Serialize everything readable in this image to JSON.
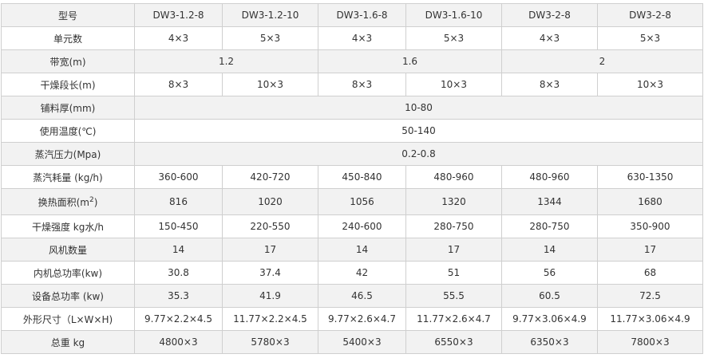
{
  "table": {
    "header": [
      "型号",
      "DW3-1.2-8",
      "DW3-1.2-10",
      "DW3-1.6-8",
      "DW3-1.6-10",
      "DW3-2-8",
      "DW3-2-8"
    ],
    "rows": [
      [
        "单元数",
        "4×3",
        "5×3",
        "4×3",
        "5×3",
        "4×3",
        "5×3"
      ],
      [
        "带宽(m)",
        "1.2",
        "1.6",
        "2"
      ],
      [
        "干燥段长(m)",
        "8×3",
        "10×3",
        "8×3",
        "10×3",
        "8×3",
        "10×3"
      ],
      [
        "铺料厚(mm)",
        "10-80"
      ],
      [
        "使用温度(℃)",
        "50-140"
      ],
      [
        "蒸汽压力(Mpa)",
        "0.2-0.8"
      ],
      [
        "蒸汽耗量 (kg/h)",
        "360-600",
        "420-720",
        "450-840",
        "480-960",
        "480-960",
        "630-1350"
      ],
      [
        [
          "换热面积(m",
          "2",
          ")"
        ],
        "816",
        "1020",
        "1056",
        "1320",
        "1344",
        "1680"
      ],
      [
        "干燥强度 kg水/h",
        "150-450",
        "220-550",
        "240-600",
        "280-750",
        "280-750",
        "350-900"
      ],
      [
        "风机数量",
        "14",
        "17",
        "14",
        "17",
        "14",
        "17"
      ],
      [
        "内机总功率(kw)",
        "30.8",
        "37.4",
        "42",
        "51",
        "56",
        "68"
      ],
      [
        "设备总功率 (kw)",
        "35.3",
        "41.9",
        "46.5",
        "55.5",
        "60.5",
        "72.5"
      ],
      [
        "外形尺寸（L×W×H)",
        "9.77×2.2×4.5",
        "11.77×2.2×4.5",
        "9.77×2.6×4.7",
        "11.77×2.6×4.7",
        "9.77×3.06×4.9",
        "11.77×3.06×4.9"
      ],
      [
        "总重 kg",
        "4800×3",
        "5780×3",
        "5400×3",
        "6550×3",
        "6350×3",
        "7800×3"
      ]
    ]
  }
}
